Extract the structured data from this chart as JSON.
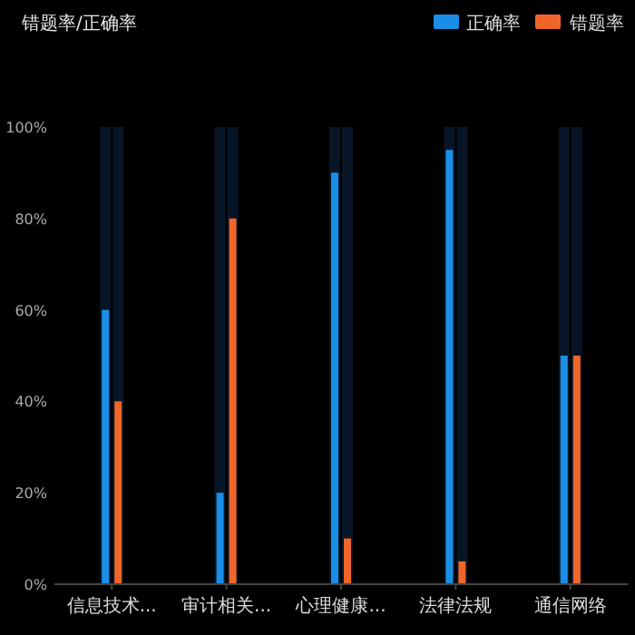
{
  "chart_data": {
    "type": "bar",
    "title": "错题率/正确率",
    "categories": [
      "信息技术...",
      "审计相关...",
      "心理健康...",
      "法律法规",
      "通信网络"
    ],
    "series": [
      {
        "name": "正确率",
        "color": "#1a8ee6",
        "values": [
          60,
          20,
          90,
          95,
          50
        ]
      },
      {
        "name": "错题率",
        "color": "#f0662a",
        "values": [
          40,
          80,
          10,
          5,
          50
        ]
      }
    ],
    "ylim": [
      0,
      100
    ],
    "yticks": [
      {
        "value": 0,
        "label": "0%"
      },
      {
        "value": 20,
        "label": "20%"
      },
      {
        "value": 40,
        "label": "40%"
      },
      {
        "value": 60,
        "label": "60%"
      },
      {
        "value": 80,
        "label": "80%"
      },
      {
        "value": 100,
        "label": "100%"
      }
    ],
    "grid": false,
    "legend": "top right"
  }
}
